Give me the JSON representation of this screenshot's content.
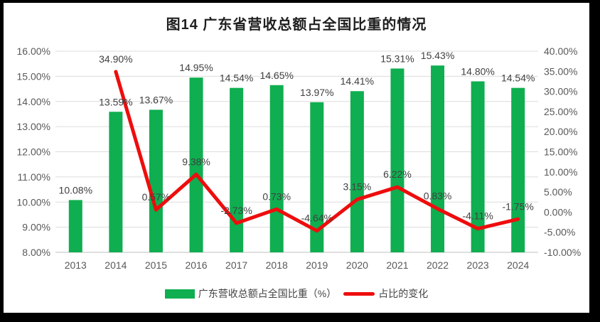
{
  "title": "图14  广东省营收总额占全国比重的情况",
  "colors": {
    "bar": "#0fae50",
    "line": "#ee0d0d",
    "grid": "#dcdcdc",
    "axis_line": "#bfbfbf",
    "axis_text": "#595959",
    "data_label": "#404040",
    "frame": "#000000",
    "background": "#ffffff"
  },
  "chart_data": {
    "type": "bar+line",
    "title": "图14  广东省营收总额占全国比重的情况",
    "categories": [
      "2013",
      "2014",
      "2015",
      "2016",
      "2017",
      "2018",
      "2019",
      "2020",
      "2021",
      "2022",
      "2023",
      "2024"
    ],
    "series": [
      {
        "name": "广东营收总额占全国比重（%）",
        "type": "bar",
        "axis": "left",
        "values": [
          10.08,
          13.59,
          13.67,
          14.95,
          14.54,
          14.65,
          13.97,
          14.41,
          15.31,
          15.43,
          14.8,
          14.54
        ],
        "labels": [
          "10.08%",
          "13.59%",
          "13.67%",
          "14.95%",
          "14.54%",
          "14.65%",
          "13.97%",
          "14.41%",
          "15.31%",
          "15.43%",
          "14.80%",
          "14.54%"
        ]
      },
      {
        "name": "占比的变化",
        "type": "line",
        "axis": "right",
        "values": [
          null,
          34.9,
          0.57,
          9.38,
          -2.73,
          0.73,
          -4.64,
          3.15,
          6.22,
          0.83,
          -4.11,
          -1.75
        ],
        "labels": [
          null,
          "34.90%",
          "0.57%",
          "9.38%",
          "-2.73%",
          "0.73%",
          "-4.64%",
          "3.15%",
          "6.22%",
          "0.83%",
          "-4.11%",
          "-1.75%"
        ]
      }
    ],
    "left_axis": {
      "min": 8,
      "max": 16,
      "step": 1,
      "tick_labels": [
        "16.00%",
        "15.00%",
        "14.00%",
        "13.00%",
        "12.00%",
        "11.00%",
        "10.00%",
        "9.00%",
        "8.00%"
      ]
    },
    "right_axis": {
      "min": -10,
      "max": 40,
      "step": 5,
      "tick_labels": [
        "40.00%",
        "35.00%",
        "30.00%",
        "25.00%",
        "20.00%",
        "15.00%",
        "10.00%",
        "5.00%",
        "0.00%",
        "-5.00%",
        "-10.00%"
      ]
    },
    "grid": true,
    "legend_position": "bottom"
  }
}
